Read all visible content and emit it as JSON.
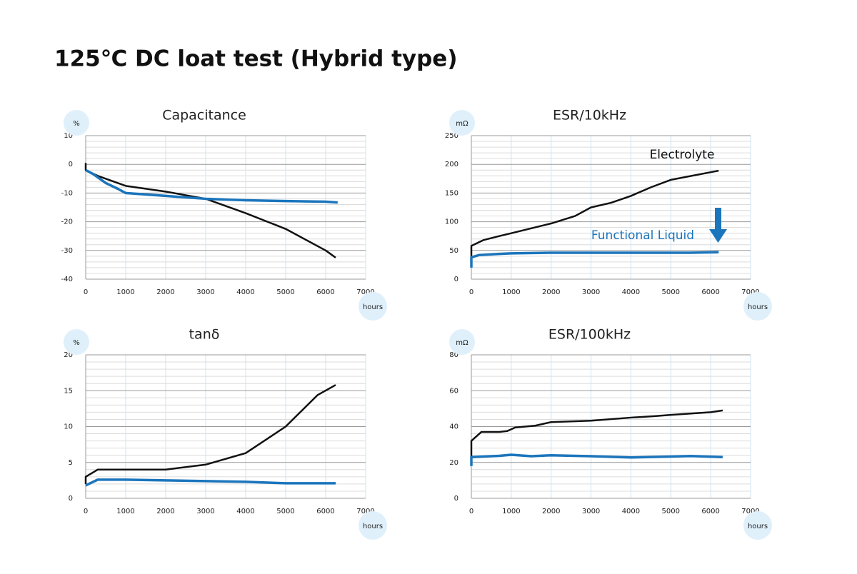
{
  "title": "125℃ DC loat test (Hybrid type)",
  "chart_data": [
    {
      "type": "line",
      "title": "Capacitance",
      "y_unit": "%",
      "x_unit": "hours",
      "xlim": [
        0,
        7000
      ],
      "xticks": [
        0,
        1000,
        2000,
        3000,
        4000,
        5000,
        6000,
        7000
      ],
      "ylim": [
        -40,
        10
      ],
      "yticks": [
        -40,
        -30,
        -20,
        -10,
        0,
        10
      ],
      "grid": true,
      "series": [
        {
          "color": "#111111",
          "x": [
            0,
            0,
            300,
            700,
            1000,
            2000,
            3000,
            4000,
            5000,
            6000,
            6250
          ],
          "values": [
            0.5,
            -2,
            -4,
            -6,
            -7.5,
            -9.5,
            -12,
            -17,
            -22.5,
            -30,
            -32.5
          ]
        },
        {
          "color": "#1b75bc",
          "x": [
            0,
            200,
            500,
            800,
            1000,
            2000,
            3000,
            4000,
            5000,
            6000,
            6300
          ],
          "values": [
            -2,
            -3.5,
            -6.5,
            -8.5,
            -10,
            -11,
            -12,
            -12.5,
            -12.8,
            -13,
            -13.3
          ]
        }
      ]
    },
    {
      "type": "line",
      "title": "ESR/10kHz",
      "y_unit": "mΩ",
      "x_unit": "hours",
      "xlim": [
        0,
        7000
      ],
      "xticks": [
        0,
        1000,
        2000,
        3000,
        4000,
        5000,
        6000,
        7000
      ],
      "ylim": [
        0,
        250
      ],
      "yticks": [
        0,
        50,
        100,
        150,
        200,
        250
      ],
      "grid": true,
      "series": [
        {
          "name": "Electrolyte",
          "color": "#111111",
          "x": [
            0,
            0,
            300,
            700,
            1000,
            2000,
            2600,
            3000,
            3500,
            4000,
            4500,
            5000,
            6200
          ],
          "values": [
            28,
            58,
            68,
            75,
            80,
            97,
            110,
            125,
            133,
            145,
            160,
            173,
            189
          ]
        },
        {
          "name": "Functional Liquid",
          "color": "#1b75bc",
          "x": [
            0,
            0,
            200,
            700,
            1000,
            2000,
            4000,
            5500,
            6200
          ],
          "values": [
            20,
            38,
            42,
            44,
            45,
            46,
            46,
            46,
            47
          ]
        }
      ]
    },
    {
      "type": "line",
      "title": "tanδ",
      "y_unit": "%",
      "x_unit": "hours",
      "xlim": [
        0,
        7000
      ],
      "xticks": [
        0,
        1000,
        2000,
        3000,
        4000,
        5000,
        6000,
        7000
      ],
      "ylim": [
        0,
        20
      ],
      "yticks": [
        0,
        5,
        10,
        15,
        20
      ],
      "grid": true,
      "series": [
        {
          "color": "#111111",
          "x": [
            0,
            0,
            300,
            1000,
            2000,
            3000,
            4000,
            5000,
            5800,
            6250
          ],
          "values": [
            2,
            3,
            4,
            4,
            4,
            4.7,
            6.3,
            10,
            14.4,
            15.8
          ]
        },
        {
          "color": "#1b75bc",
          "x": [
            0,
            300,
            1000,
            2000,
            3000,
            4000,
            5000,
            6250
          ],
          "values": [
            1.8,
            2.6,
            2.6,
            2.5,
            2.4,
            2.3,
            2.1,
            2.1
          ]
        }
      ]
    },
    {
      "type": "line",
      "title": "ESR/100kHz",
      "y_unit": "mΩ",
      "x_unit": "hours",
      "xlim": [
        0,
        7000
      ],
      "xticks": [
        0,
        1000,
        2000,
        3000,
        4000,
        5000,
        6000,
        7000
      ],
      "ylim": [
        0,
        80
      ],
      "yticks": [
        0,
        20,
        40,
        60,
        80
      ],
      "grid": true,
      "series": [
        {
          "color": "#111111",
          "x": [
            0,
            0,
            250,
            700,
            900,
            1100,
            1600,
            2000,
            3000,
            4000,
            4600,
            5000,
            6000,
            6300
          ],
          "values": [
            20,
            32,
            37,
            37,
            37.5,
            39.5,
            40.5,
            42.5,
            43.3,
            45,
            45.8,
            46.5,
            48,
            49
          ]
        },
        {
          "color": "#1b75bc",
          "x": [
            0,
            0,
            500,
            700,
            1000,
            1500,
            2000,
            3000,
            4000,
            5000,
            5500,
            6300
          ],
          "values": [
            18,
            23,
            23.5,
            23.7,
            24.3,
            23.5,
            24,
            23.5,
            22.8,
            23.3,
            23.6,
            23
          ]
        }
      ]
    }
  ]
}
